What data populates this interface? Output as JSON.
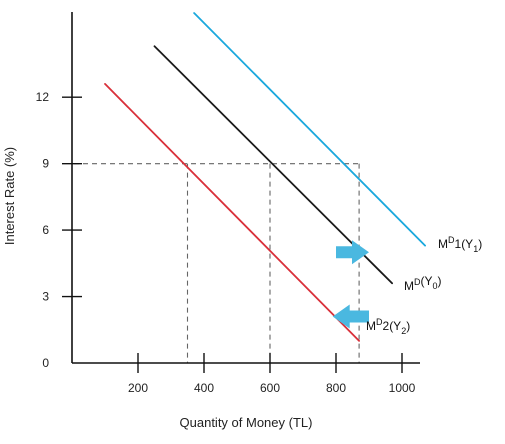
{
  "chart_data": {
    "type": "line",
    "title": "",
    "xlabel": "Quantity of Money (TL)",
    "ylabel": "Interest Rate (%)",
    "xlim": [
      0,
      1000
    ],
    "ylim": [
      0,
      15
    ],
    "x_ticks": [
      200,
      400,
      600,
      800,
      1000
    ],
    "y_ticks": [
      0,
      3,
      6,
      9,
      12
    ],
    "grid": false,
    "series": [
      {
        "name": "MD1(Y1)",
        "label_main": "M",
        "label_sup": "D",
        "label_mid": "1",
        "label_open": "(Y",
        "label_sub": "1",
        "label_close": ")",
        "color": "#1aa8dd",
        "x": [
          370,
          1070
        ],
        "y": [
          15.8,
          5.3
        ]
      },
      {
        "name": "MD(Y0)",
        "label_main": "M",
        "label_sup": "D",
        "label_mid": "",
        "label_open": "(Y",
        "label_sub": "0",
        "label_close": ")",
        "color": "#1a1a1a",
        "x": [
          250,
          970
        ],
        "y": [
          14.3,
          3.6
        ]
      },
      {
        "name": "MD2(Y2)",
        "label_main": "M",
        "label_sup": "D",
        "label_mid": "2",
        "label_open": "(Y",
        "label_sub": "2",
        "label_close": ")",
        "color": "#d9303a",
        "x": [
          100,
          870
        ],
        "y": [
          12.6,
          1.0
        ]
      }
    ],
    "reference_lines": {
      "horizontal_y": 9,
      "horizontal_x_range": [
        0,
        870
      ],
      "verticals": [
        {
          "x": 350,
          "y_top": 9
        },
        {
          "x": 600,
          "y_top": 9
        },
        {
          "x": 870,
          "y_top": 9
        }
      ]
    },
    "arrows": [
      {
        "direction": "right",
        "x": [
          800,
          900
        ],
        "y": 5.0,
        "color": "#4ab8e0"
      },
      {
        "direction": "left",
        "x": [
          900,
          790
        ],
        "y": 2.1,
        "color": "#4ab8e0"
      }
    ]
  }
}
